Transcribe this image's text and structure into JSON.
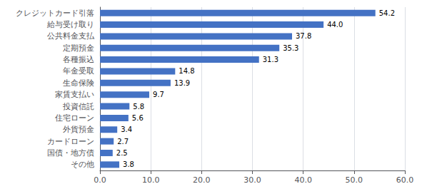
{
  "chart_data": {
    "type": "bar",
    "orientation": "horizontal",
    "categories": [
      "その他",
      "国債・地方債",
      "カードローン",
      "外貨預金",
      "住宅ローン",
      "投資信託",
      "家賃支払い",
      "生命保険",
      "年金受取",
      "各種振込",
      "定期預金",
      "公共料金支払",
      "給与受け取り",
      "クレジットカード引落"
    ],
    "values": [
      3.8,
      2.5,
      2.7,
      3.4,
      5.6,
      5.8,
      9.7,
      13.9,
      14.8,
      31.3,
      35.3,
      37.8,
      44.0,
      54.2
    ],
    "value_labels": [
      "3.8",
      "2.5",
      "2.7",
      "3.4",
      "5.6",
      "5.8",
      "9.7",
      "13.9",
      "14.8",
      "31.3",
      "35.3",
      "37.8",
      "44.0",
      "54.2"
    ],
    "data_labels": true,
    "color": "#4472c4",
    "xlim": [
      0,
      60.0
    ],
    "xticks": [
      {
        "value": 0.0,
        "label": "0.0"
      },
      {
        "value": 10.0,
        "label": "10.0"
      },
      {
        "value": 20.0,
        "label": "20.0"
      },
      {
        "value": 30.0,
        "label": "30.0"
      },
      {
        "value": 40.0,
        "label": "40.0"
      },
      {
        "value": 50.0,
        "label": "50.0"
      },
      {
        "value": 60.0,
        "label": "60.0"
      }
    ],
    "grid": true
  }
}
